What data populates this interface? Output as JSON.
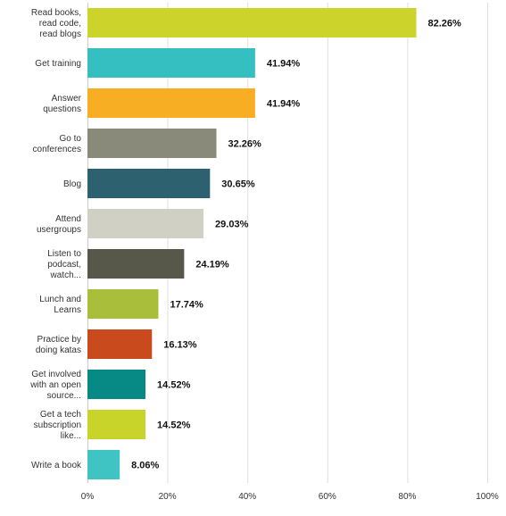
{
  "chart_data": {
    "type": "bar",
    "orientation": "horizontal",
    "title": "",
    "xlabel": "",
    "ylabel": "",
    "xlim": [
      0,
      100
    ],
    "x_tick_labels": [
      "0%",
      "20%",
      "40%",
      "60%",
      "80%",
      "100%"
    ],
    "x_tick_values": [
      0,
      20,
      40,
      60,
      80,
      100
    ],
    "grid": true,
    "categories": [
      [
        "Read books,",
        "read code,",
        "read blogs"
      ],
      [
        "Get training"
      ],
      [
        "Answer",
        "questions"
      ],
      [
        "Go to",
        "conferences"
      ],
      [
        "Blog"
      ],
      [
        "Attend",
        "usergroups"
      ],
      [
        "Listen to",
        "podcast,",
        "watch..."
      ],
      [
        "Lunch and",
        "Learns"
      ],
      [
        "Practice by",
        "doing katas"
      ],
      [
        "Get involved",
        "with an open",
        "source..."
      ],
      [
        "Get a tech",
        "subscription",
        "like..."
      ],
      [
        "Write a book"
      ]
    ],
    "values": [
      82.26,
      41.94,
      41.94,
      32.26,
      30.65,
      29.03,
      24.19,
      17.74,
      16.13,
      14.52,
      14.52,
      8.06
    ],
    "value_labels": [
      "82.26%",
      "41.94%",
      "41.94%",
      "32.26%",
      "30.65%",
      "29.03%",
      "24.19%",
      "17.74%",
      "16.13%",
      "14.52%",
      "14.52%",
      "8.06%"
    ],
    "colors": [
      "#ccd42c",
      "#35bfc0",
      "#f7ae22",
      "#898a7a",
      "#2d6170",
      "#d1d0c4",
      "#57574a",
      "#a9be3a",
      "#c94a1d",
      "#078a86",
      "#c9d42a",
      "#3fc3c3"
    ]
  }
}
